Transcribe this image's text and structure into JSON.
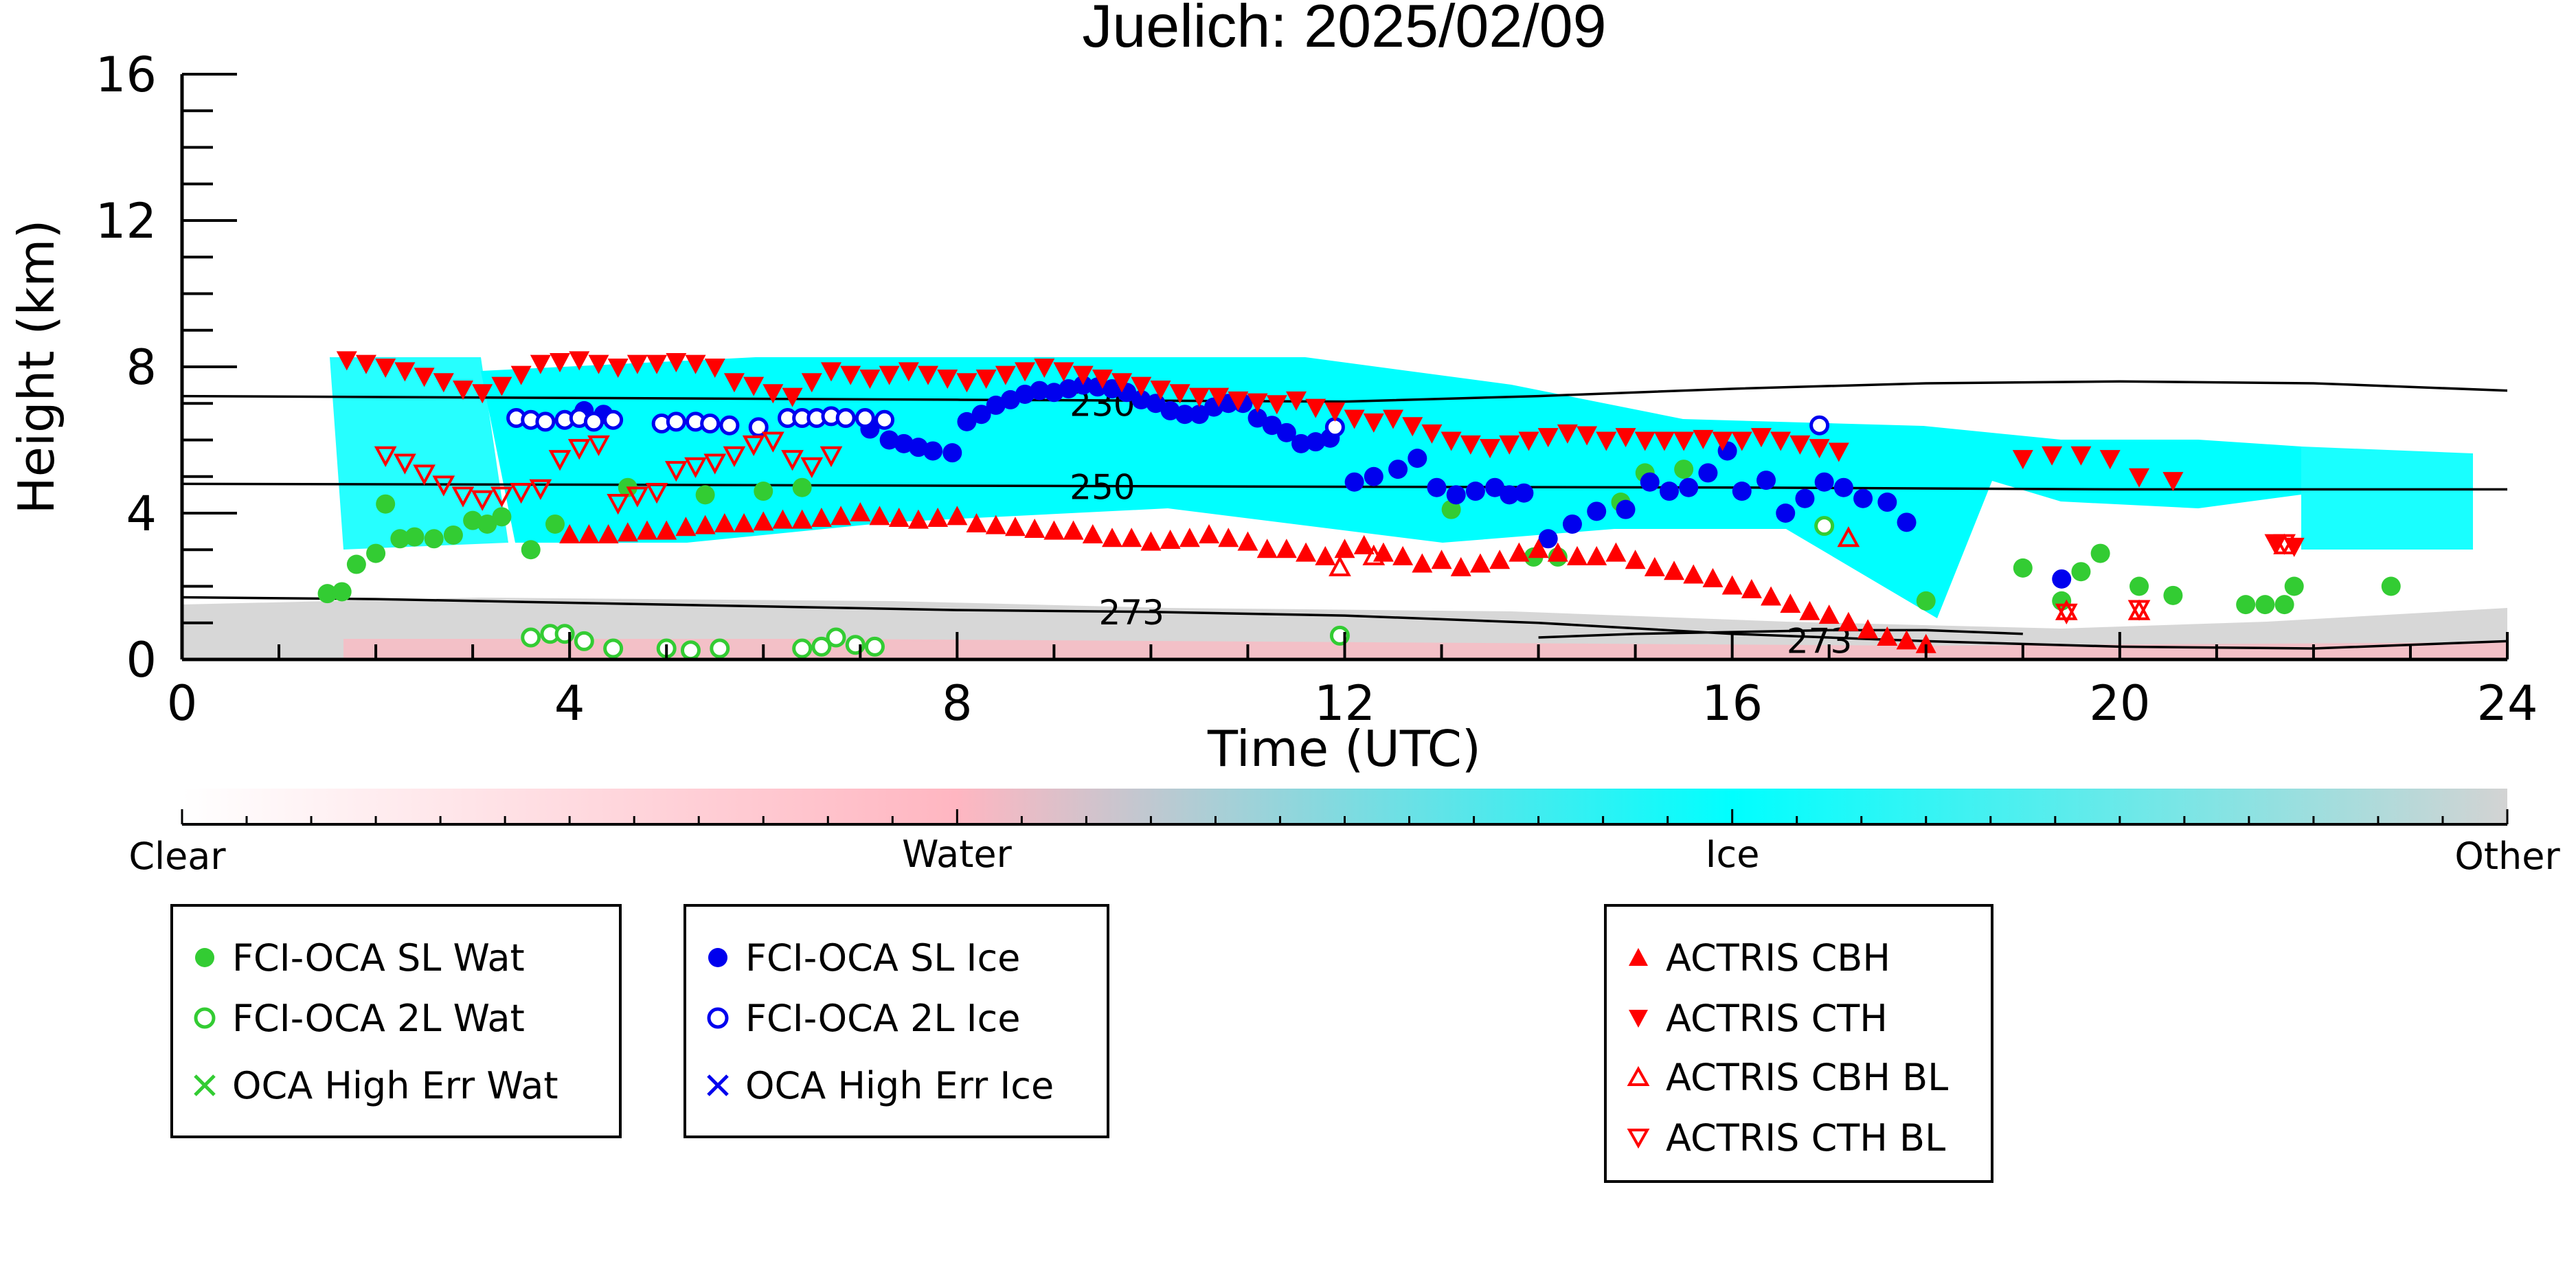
{
  "chart_data": {
    "type": "scatter",
    "title": "Juelich: 2025/02/09",
    "xlabel": "Time (UTC)",
    "ylabel": "Height (km)",
    "xlim": [
      0,
      24
    ],
    "ylim": [
      0,
      16
    ],
    "x_ticks": [
      0,
      4,
      8,
      12,
      16,
      20,
      24
    ],
    "y_ticks": [
      0,
      4,
      8,
      12,
      16
    ],
    "grid": false,
    "colorbar": {
      "labels": [
        "Clear",
        "Water",
        "Ice",
        "Other"
      ],
      "colors": {
        "clear": "#ffffff",
        "water": "#ffb6c1",
        "ice": "#00ffff",
        "other": "#d3d3d3"
      }
    },
    "isotherms": [
      {
        "label": "230",
        "points": [
          [
            0,
            7.2
          ],
          [
            4,
            7.15
          ],
          [
            8,
            7.1
          ],
          [
            12,
            7.05
          ],
          [
            14,
            7.2
          ],
          [
            16,
            7.4
          ],
          [
            18,
            7.55
          ],
          [
            20,
            7.6
          ],
          [
            22,
            7.55
          ],
          [
            24,
            7.35
          ]
        ]
      },
      {
        "label": "250",
        "points": [
          [
            0,
            4.8
          ],
          [
            4,
            4.78
          ],
          [
            8,
            4.75
          ],
          [
            12,
            4.72
          ],
          [
            16,
            4.7
          ],
          [
            20,
            4.65
          ],
          [
            24,
            4.65
          ]
        ]
      },
      {
        "label": "273",
        "points": [
          [
            0,
            1.7
          ],
          [
            2,
            1.65
          ],
          [
            4,
            1.55
          ],
          [
            6,
            1.45
          ],
          [
            8,
            1.35
          ],
          [
            10,
            1.3
          ],
          [
            12,
            1.2
          ],
          [
            14,
            1.0
          ],
          [
            16,
            0.7
          ],
          [
            18,
            0.5
          ],
          [
            20,
            0.35
          ],
          [
            22,
            0.3
          ],
          [
            24,
            0.5
          ]
        ]
      },
      {
        "label": "273",
        "points": [
          [
            14,
            0.6
          ],
          [
            15,
            0.7
          ],
          [
            16,
            0.75
          ],
          [
            17,
            0.8
          ],
          [
            18,
            0.8
          ],
          [
            19,
            0.7
          ]
        ]
      }
    ],
    "isotherm_label_positions": [
      [
        9.5,
        7.0
      ],
      [
        9.5,
        4.72
      ],
      [
        9.8,
        1.3
      ],
      [
        16.9,
        0.52
      ]
    ],
    "series": [
      {
        "name": "FCI-OCA SL Wat",
        "color": "#33cc33",
        "marker": "circle-filled",
        "x": [
          1.5,
          1.65,
          1.8,
          2.0,
          2.1,
          2.25,
          2.4,
          2.6,
          2.8,
          3.0,
          3.15,
          3.3,
          3.6,
          3.85,
          4.6,
          5.4,
          6.0,
          6.4,
          13.1,
          13.95,
          14.2,
          14.85,
          15.1,
          15.5,
          18.0,
          19.0,
          19.4,
          19.6,
          19.8,
          20.2,
          20.55,
          21.3,
          21.5,
          21.7,
          21.8,
          22.8
        ],
        "y": [
          1.8,
          1.85,
          2.6,
          2.9,
          4.25,
          3.3,
          3.35,
          3.3,
          3.4,
          3.8,
          3.7,
          3.9,
          3.0,
          3.7,
          4.7,
          4.5,
          4.6,
          4.7,
          4.1,
          2.8,
          2.8,
          4.3,
          5.1,
          5.2,
          1.6,
          2.5,
          1.6,
          2.4,
          2.9,
          2.0,
          1.75,
          1.5,
          1.5,
          1.5,
          2.0,
          2.0
        ]
      },
      {
        "name": "FCI-OCA 2L Wat",
        "color": "#33cc33",
        "marker": "circle-open",
        "x": [
          3.6,
          3.8,
          3.95,
          4.15,
          4.45,
          5.0,
          5.25,
          5.55,
          6.4,
          6.6,
          6.75,
          6.95,
          7.15,
          11.95,
          16.95
        ],
        "y": [
          0.6,
          0.7,
          0.7,
          0.5,
          0.3,
          0.3,
          0.25,
          0.3,
          0.3,
          0.35,
          0.6,
          0.4,
          0.35,
          0.65,
          3.65
        ]
      },
      {
        "name": "OCA High Err Wat",
        "color": "#33cc33",
        "marker": "x",
        "x": [],
        "y": []
      },
      {
        "name": "FCI-OCA SL Ice",
        "color": "#0000ee",
        "marker": "circle-filled",
        "x": [
          4.15,
          4.35,
          7.1,
          7.3,
          7.45,
          7.6,
          7.75,
          7.95,
          8.1,
          8.25,
          8.4,
          8.55,
          8.7,
          8.85,
          9.0,
          9.15,
          9.3,
          9.45,
          9.6,
          9.75,
          9.9,
          10.05,
          10.2,
          10.35,
          10.5,
          10.65,
          10.8,
          10.95,
          11.1,
          11.25,
          11.4,
          11.55,
          11.7,
          11.85,
          12.1,
          12.3,
          12.55,
          12.75,
          12.95,
          13.15,
          13.35,
          13.55,
          13.7,
          13.85,
          14.1,
          14.35,
          14.6,
          14.9,
          15.15,
          15.35,
          15.55,
          15.75,
          15.95,
          16.1,
          16.35,
          16.55,
          16.75,
          16.95,
          17.15,
          17.35,
          17.6,
          17.8,
          19.4
        ],
        "y": [
          6.8,
          6.7,
          6.3,
          6.0,
          5.9,
          5.8,
          5.7,
          5.65,
          6.5,
          6.7,
          6.95,
          7.1,
          7.25,
          7.35,
          7.3,
          7.4,
          7.5,
          7.45,
          7.4,
          7.3,
          7.1,
          7.0,
          6.8,
          6.7,
          6.7,
          6.9,
          7.0,
          7.0,
          6.6,
          6.4,
          6.2,
          5.9,
          5.95,
          6.05,
          4.85,
          5.0,
          5.2,
          5.5,
          4.7,
          4.5,
          4.6,
          4.7,
          4.5,
          4.55,
          3.3,
          3.7,
          4.05,
          4.1,
          4.85,
          4.6,
          4.7,
          5.1,
          5.7,
          4.6,
          4.9,
          4.0,
          4.4,
          4.85,
          4.7,
          4.4,
          4.3,
          3.75,
          2.2
        ]
      },
      {
        "name": "FCI-OCA 2L Ice",
        "color": "#0000ee",
        "marker": "circle-open",
        "x": [
          3.45,
          3.6,
          3.75,
          3.95,
          4.1,
          4.25,
          4.45,
          4.95,
          5.1,
          5.3,
          5.45,
          5.65,
          5.95,
          6.25,
          6.4,
          6.55,
          6.7,
          6.85,
          7.05,
          7.25,
          11.9,
          16.9
        ],
        "y": [
          6.6,
          6.55,
          6.5,
          6.55,
          6.6,
          6.5,
          6.55,
          6.45,
          6.5,
          6.5,
          6.45,
          6.4,
          6.35,
          6.6,
          6.6,
          6.6,
          6.65,
          6.6,
          6.6,
          6.55,
          6.35,
          6.4
        ]
      },
      {
        "name": "OCA High Err Ice",
        "color": "#0000ee",
        "marker": "x",
        "x": [],
        "y": []
      },
      {
        "name": "ACTRIS CBH",
        "color": "#ff0000",
        "marker": "triangle-up-filled",
        "x": [
          4.0,
          4.2,
          4.4,
          4.6,
          4.8,
          5.0,
          5.2,
          5.4,
          5.6,
          5.8,
          6.0,
          6.2,
          6.4,
          6.6,
          6.8,
          7.0,
          7.2,
          7.4,
          7.6,
          7.8,
          8.0,
          8.2,
          8.4,
          8.6,
          8.8,
          9.0,
          9.2,
          9.4,
          9.6,
          9.8,
          10.0,
          10.2,
          10.4,
          10.6,
          10.8,
          11.0,
          11.2,
          11.4,
          11.6,
          11.8,
          12.0,
          12.2,
          12.4,
          12.6,
          12.8,
          13.0,
          13.2,
          13.4,
          13.6,
          13.8,
          14.0,
          14.2,
          14.4,
          14.6,
          14.8,
          15.0,
          15.2,
          15.4,
          15.6,
          15.8,
          16.0,
          16.2,
          16.4,
          16.6,
          16.8,
          17.0,
          17.2,
          17.4,
          17.6,
          17.8,
          18.0
        ],
        "y": [
          3.4,
          3.4,
          3.4,
          3.45,
          3.5,
          3.5,
          3.6,
          3.65,
          3.7,
          3.7,
          3.75,
          3.8,
          3.8,
          3.85,
          3.9,
          4.0,
          3.9,
          3.85,
          3.8,
          3.85,
          3.9,
          3.7,
          3.65,
          3.6,
          3.55,
          3.5,
          3.5,
          3.4,
          3.3,
          3.3,
          3.2,
          3.25,
          3.3,
          3.4,
          3.3,
          3.2,
          3.0,
          3.0,
          2.9,
          2.8,
          3.0,
          3.1,
          2.9,
          2.8,
          2.6,
          2.7,
          2.5,
          2.6,
          2.7,
          2.9,
          3.0,
          2.9,
          2.8,
          2.8,
          2.9,
          2.7,
          2.5,
          2.4,
          2.3,
          2.2,
          2.0,
          1.9,
          1.7,
          1.5,
          1.3,
          1.2,
          1.0,
          0.8,
          0.6,
          0.5,
          0.4
        ]
      },
      {
        "name": "ACTRIS CTH",
        "color": "#ff0000",
        "marker": "triangle-down-filled",
        "x": [
          1.7,
          1.9,
          2.1,
          2.3,
          2.5,
          2.7,
          2.9,
          3.1,
          3.3,
          3.5,
          3.7,
          3.9,
          4.1,
          4.3,
          4.5,
          4.7,
          4.9,
          5.1,
          5.3,
          5.5,
          5.7,
          5.9,
          6.1,
          6.3,
          6.5,
          6.7,
          6.9,
          7.1,
          7.3,
          7.5,
          7.7,
          7.9,
          8.1,
          8.3,
          8.5,
          8.7,
          8.9,
          9.1,
          9.3,
          9.5,
          9.7,
          9.9,
          10.1,
          10.3,
          10.5,
          10.7,
          10.9,
          11.1,
          11.3,
          11.5,
          11.7,
          11.9,
          12.1,
          12.3,
          12.5,
          12.7,
          12.9,
          13.1,
          13.3,
          13.5,
          13.7,
          13.9,
          14.1,
          14.3,
          14.5,
          14.7,
          14.9,
          15.1,
          15.3,
          15.5,
          15.7,
          15.9,
          16.1,
          16.3,
          16.5,
          16.7,
          16.9,
          17.1,
          19.0,
          19.3,
          19.6,
          19.9,
          20.2,
          20.55,
          21.6,
          21.8
        ],
        "y": [
          8.2,
          8.1,
          8.0,
          7.9,
          7.75,
          7.6,
          7.4,
          7.3,
          7.5,
          7.8,
          8.1,
          8.15,
          8.2,
          8.1,
          8.0,
          8.1,
          8.1,
          8.15,
          8.1,
          8.0,
          7.6,
          7.5,
          7.3,
          7.2,
          7.6,
          7.9,
          7.8,
          7.7,
          7.8,
          7.9,
          7.8,
          7.7,
          7.6,
          7.7,
          7.8,
          7.9,
          8.0,
          7.9,
          7.8,
          7.7,
          7.6,
          7.5,
          7.4,
          7.3,
          7.2,
          7.2,
          7.1,
          7.05,
          7.0,
          7.1,
          6.9,
          6.8,
          6.6,
          6.5,
          6.6,
          6.4,
          6.2,
          6.0,
          5.9,
          5.8,
          5.9,
          6.0,
          6.1,
          6.2,
          6.15,
          6.0,
          6.1,
          6.0,
          6.0,
          6.0,
          6.05,
          6.0,
          6.0,
          6.1,
          6.0,
          5.9,
          5.8,
          5.7,
          5.5,
          5.6,
          5.6,
          5.5,
          5.0,
          4.9,
          3.2,
          3.1
        ]
      },
      {
        "name": "ACTRIS CBH BL",
        "color": "#ff0000",
        "marker": "triangle-up-open",
        "x": [
          11.95,
          12.3,
          17.2,
          19.45,
          20.2,
          21.7
        ],
        "y": [
          2.5,
          2.8,
          3.3,
          1.3,
          1.3,
          3.1
        ]
      },
      {
        "name": "ACTRIS CTH BL",
        "color": "#ff0000",
        "marker": "triangle-down-open",
        "x": [
          2.1,
          2.3,
          2.5,
          2.7,
          2.9,
          3.1,
          3.3,
          3.5,
          3.7,
          3.9,
          4.1,
          4.3,
          4.5,
          4.7,
          4.9,
          5.1,
          5.3,
          5.5,
          5.7,
          5.9,
          6.1,
          6.3,
          6.5,
          6.7,
          19.45,
          20.2,
          21.7
        ],
        "y": [
          5.6,
          5.4,
          5.1,
          4.8,
          4.5,
          4.4,
          4.5,
          4.6,
          4.7,
          5.5,
          5.8,
          5.9,
          4.3,
          4.5,
          4.6,
          5.2,
          5.3,
          5.4,
          5.6,
          5.9,
          6.0,
          5.5,
          5.3,
          5.6,
          1.3,
          1.4,
          3.2
        ]
      }
    ]
  },
  "legend_groups": [
    {
      "items": [
        "FCI-OCA SL Wat",
        "FCI-OCA 2L Wat",
        "OCA High Err Wat"
      ]
    },
    {
      "items": [
        "FCI-OCA SL Ice",
        "FCI-OCA 2L Ice",
        "OCA High Err Ice"
      ]
    },
    {
      "items": [
        "ACTRIS CBH",
        "ACTRIS CTH",
        "ACTRIS CBH BL",
        "ACTRIS CTH BL"
      ]
    }
  ],
  "legend_markers": [
    [
      "circle-filled",
      "circle-open",
      "x"
    ],
    [
      "circle-filled",
      "circle-open",
      "x"
    ],
    [
      "triangle-up-filled",
      "triangle-down-filled",
      "triangle-up-open",
      "triangle-down-open"
    ]
  ],
  "legend_colors": [
    "#33cc33",
    "#0000ee",
    "#ff0000"
  ]
}
